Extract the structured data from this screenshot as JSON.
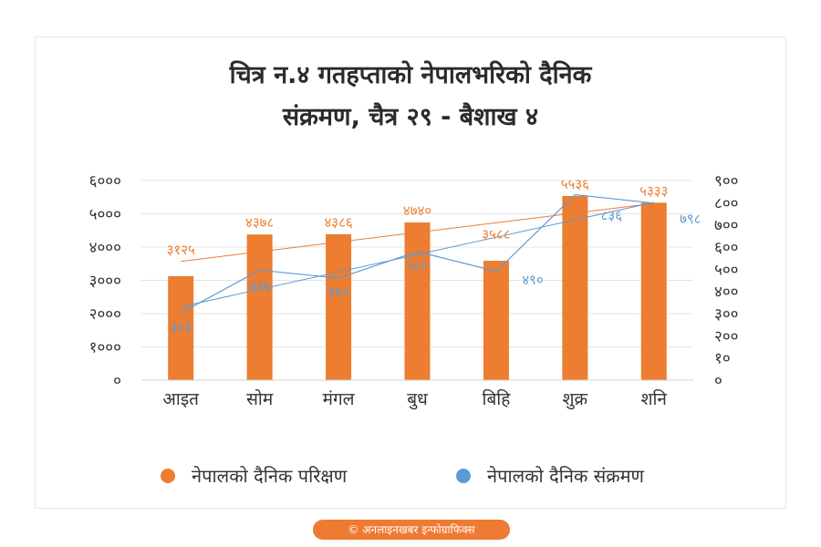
{
  "title_line1": "चित्र न.४ गतहप्ताको नेपालभरिको दैनिक",
  "title_line2": "संक्रमण, चैत्र २९ - बैशाख ४",
  "legend": {
    "tests": "नेपालको दैनिक परिक्षण",
    "infections": "नेपालको दैनिक  संक्रमण"
  },
  "credit": "© अनलाइनखबर इन्फोग्राफिक्स",
  "chart_data": {
    "type": "bar",
    "categories": [
      "आइत",
      "सोम",
      "मंगल",
      "बुध",
      "बिहि",
      "शुक्र",
      "शनि"
    ],
    "series": [
      {
        "name": "नेपालको दैनिक परिक्षण",
        "kind": "bar",
        "axis": "left",
        "color": "#ed7d31",
        "values": [
          3125,
          4378,
          4386,
          4740,
          3588,
          5536,
          5333
        ],
        "labels": [
          "३१२५",
          "४३७८",
          "४३८६",
          "४७४०",
          "३५८८",
          "५५३६",
          "५३३३"
        ],
        "trendline": true
      },
      {
        "name": "नेपालको दैनिक  संक्रमण",
        "kind": "line",
        "axis": "right",
        "color": "#5b9bd5",
        "values": [
          303,
          496,
          460,
          580,
          490,
          836,
          798
        ],
        "labels": [
          "३०३",
          "४९६",
          "४६०",
          "५८०",
          "४९०",
          "८३६",
          "७९८"
        ],
        "trendline": true
      }
    ],
    "y_left": {
      "min": 0,
      "max": 6000,
      "ticks": [
        "०",
        "१०००",
        "२०००",
        "३०००",
        "४०००",
        "५०००",
        "६०००"
      ]
    },
    "y_right": {
      "min": 0,
      "max": 900,
      "ticks": [
        "०",
        "१०",
        "२००",
        "३००",
        "४००",
        "५००",
        "६००",
        "७००",
        "८००",
        "९००"
      ]
    },
    "legend_position": "bottom",
    "grid": true
  }
}
